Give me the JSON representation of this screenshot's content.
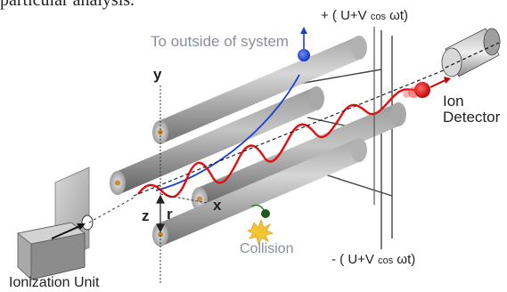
{
  "caption": "particular analysis.",
  "outside_label": "To outside of system",
  "plus_voltage": {
    "prefix": "+ ( U+V ",
    "cos": "cos",
    "suffix": " ωt)"
  },
  "minus_voltage": {
    "prefix": "- ( U+V ",
    "cos": "cos",
    "suffix": " ωt)"
  },
  "axis_y": "y",
  "axis_z": "z",
  "axis_x": "x",
  "axis_r": "r",
  "collision_label": "Collision",
  "detector_line1": "Ion",
  "detector_line2": "Detector",
  "ionization_label": "Ionization Unit",
  "colors": {
    "rod_light": "#c9c9c9",
    "rod_dark": "#7d7d7d",
    "ion_path": "#e01010",
    "escape_path": "#1a3fd0",
    "axis_dot": "#d08a2a",
    "flash": "#f2c531"
  }
}
